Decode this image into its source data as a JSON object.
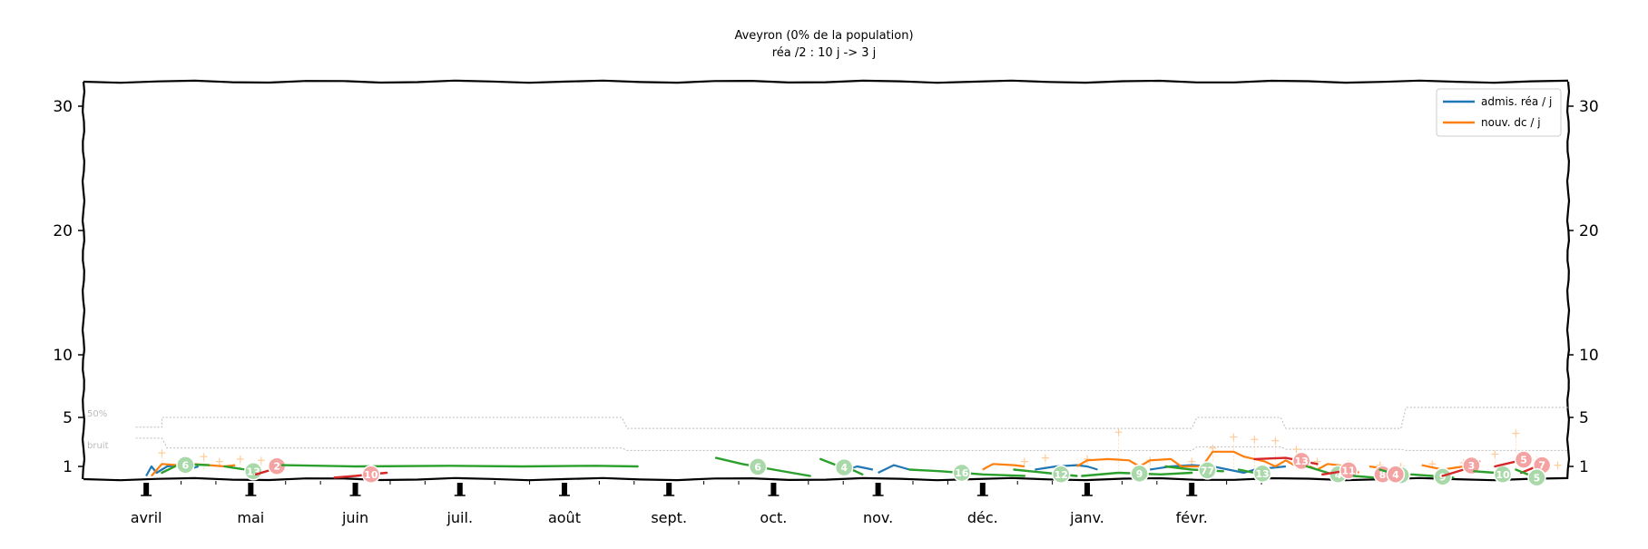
{
  "chart_data": {
    "type": "line",
    "title": "Aveyron (0% de la population)",
    "subtitle": "réa /2 : 10 j -> 3 j",
    "xlabel": "",
    "ylabel": "",
    "months": [
      "avril",
      "mai",
      "juin",
      "juil.",
      "août",
      "sept.",
      "oct.",
      "nov.",
      "déc.",
      "janv.",
      "févr."
    ],
    "yticks": [
      1,
      5,
      10,
      20,
      30
    ],
    "ylim": [
      0.6,
      32
    ],
    "grid": false,
    "legend": {
      "placement": "top-right",
      "entries": [
        "admis. réa / j",
        "nouv. dc / j"
      ]
    },
    "band_labels": [
      "50%",
      "bruit"
    ],
    "colors": {
      "rea": "#1f77b4",
      "dc": "#ff7f0e",
      "falling": "#2ca02c",
      "rising": "#d62728",
      "band": "#bbbbbb",
      "dc_points": "#ffcc99"
    },
    "series": [
      {
        "name": "admis. réa / j",
        "color": "#1f77b4",
        "segments": [
          [
            [
              0.0,
              0.7
            ],
            [
              0.05,
              1.0
            ],
            [
              0.1,
              0.8
            ],
            [
              0.2,
              1.0
            ],
            [
              0.3,
              1.1
            ],
            [
              0.4,
              0.9
            ],
            [
              0.5,
              1.0
            ]
          ],
          [
            [
              6.7,
              0.9
            ],
            [
              6.8,
              1.0
            ],
            [
              6.95,
              0.9
            ]
          ],
          [
            [
              7.0,
              0.8
            ],
            [
              7.15,
              1.1
            ],
            [
              7.3,
              0.9
            ]
          ],
          [
            [
              8.5,
              0.9
            ],
            [
              8.7,
              1.0
            ],
            [
              8.9,
              1.1
            ],
            [
              9.0,
              1.0
            ],
            [
              9.1,
              0.9
            ]
          ],
          [
            [
              9.6,
              0.9
            ],
            [
              9.8,
              1.0
            ],
            [
              10.0,
              1.1
            ],
            [
              10.2,
              1.0
            ],
            [
              10.5,
              0.8
            ],
            [
              10.6,
              0.9
            ],
            [
              10.9,
              1.0
            ]
          ]
        ]
      },
      {
        "name": "nouv. dc / j",
        "color": "#ff7f0e",
        "segments": [
          [
            [
              0.05,
              0.7
            ],
            [
              0.15,
              1.2
            ],
            [
              0.3,
              1.1
            ],
            [
              0.35,
              0.9
            ],
            [
              0.45,
              1.2
            ],
            [
              0.6,
              1.1
            ],
            [
              0.75,
              1.0
            ],
            [
              0.85,
              1.1
            ]
          ],
          [
            [
              8.0,
              0.9
            ],
            [
              8.1,
              1.2
            ],
            [
              8.3,
              1.1
            ],
            [
              8.4,
              1.0
            ]
          ],
          [
            [
              8.9,
              1.0
            ],
            [
              9.0,
              1.5
            ],
            [
              9.2,
              1.6
            ],
            [
              9.4,
              1.5
            ],
            [
              9.5,
              1.0
            ],
            [
              9.6,
              1.5
            ],
            [
              9.8,
              1.6
            ],
            [
              9.9,
              1.0
            ],
            [
              10.1,
              1.0
            ],
            [
              10.2,
              2.2
            ],
            [
              10.4,
              2.2
            ],
            [
              10.5,
              1.8
            ],
            [
              10.7,
              1.4
            ],
            [
              10.8,
              1.0
            ],
            [
              10.9,
              1.5
            ],
            [
              11.0,
              1.0
            ]
          ],
          [
            [
              11.1,
              1.1
            ],
            [
              11.2,
              0.9
            ],
            [
              11.3,
              1.2
            ],
            [
              11.5,
              1.0
            ],
            [
              11.6,
              0.8
            ]
          ],
          [
            [
              11.7,
              1.0
            ],
            [
              11.9,
              0.9
            ],
            [
              12.0,
              1.0
            ]
          ],
          [
            [
              12.2,
              1.1
            ],
            [
              12.4,
              0.9
            ],
            [
              12.6,
              1.0
            ]
          ]
        ]
      }
    ],
    "trends": [
      {
        "dir": "falling",
        "label": "6",
        "points": [
          [
            0.15,
            0.8
          ],
          [
            0.3,
            1.1
          ],
          [
            0.45,
            1.15
          ],
          [
            0.6,
            1.1
          ]
        ]
      },
      {
        "dir": "falling",
        "label": "13",
        "points": [
          [
            0.75,
            1.0
          ],
          [
            0.95,
            0.9
          ],
          [
            1.1,
            0.8
          ]
        ]
      },
      {
        "dir": "rising",
        "label": "2",
        "points": [
          [
            1.05,
            0.75
          ],
          [
            1.2,
            0.9
          ],
          [
            1.3,
            1.3
          ]
        ]
      },
      {
        "dir": "falling",
        "label": "",
        "points": [
          [
            1.3,
            1.1
          ],
          [
            2.0,
            1.0
          ],
          [
            2.9,
            1.05
          ],
          [
            3.6,
            1.0
          ],
          [
            4.3,
            1.05
          ],
          [
            4.7,
            1.0
          ]
        ]
      },
      {
        "dir": "rising",
        "label": "10",
        "points": [
          [
            1.8,
            0.65
          ],
          [
            2.0,
            0.7
          ],
          [
            2.3,
            0.8
          ]
        ]
      },
      {
        "dir": "falling",
        "label": "6",
        "points": [
          [
            5.45,
            1.7
          ],
          [
            5.7,
            1.2
          ],
          [
            6.0,
            0.9
          ],
          [
            6.35,
            0.7
          ]
        ]
      },
      {
        "dir": "falling",
        "label": "4",
        "points": [
          [
            6.45,
            1.6
          ],
          [
            6.6,
            1.1
          ],
          [
            6.75,
            0.9
          ],
          [
            6.85,
            0.75
          ]
        ]
      },
      {
        "dir": "falling",
        "label": "16",
        "points": [
          [
            7.3,
            0.9
          ],
          [
            7.6,
            0.85
          ],
          [
            8.0,
            0.75
          ],
          [
            8.4,
            0.7
          ]
        ]
      },
      {
        "dir": "falling",
        "label": "12",
        "points": [
          [
            8.3,
            0.9
          ],
          [
            8.6,
            0.8
          ],
          [
            8.9,
            0.7
          ]
        ]
      },
      {
        "dir": "falling",
        "label": "9",
        "points": [
          [
            8.95,
            0.7
          ],
          [
            9.3,
            0.8
          ],
          [
            9.7,
            0.75
          ],
          [
            10.0,
            0.8
          ]
        ]
      },
      {
        "dir": "falling",
        "label": "77",
        "points": [
          [
            9.75,
            1.0
          ],
          [
            10.0,
            0.9
          ],
          [
            10.3,
            0.85
          ]
        ]
      },
      {
        "dir": "falling",
        "label": "13",
        "points": [
          [
            10.45,
            0.9
          ],
          [
            10.6,
            0.8
          ],
          [
            10.75,
            0.75
          ]
        ]
      },
      {
        "dir": "rising",
        "label": "13",
        "points": [
          [
            10.6,
            1.6
          ],
          [
            10.9,
            1.7
          ],
          [
            11.2,
            1.2
          ]
        ]
      },
      {
        "dir": "falling",
        "label": "4",
        "points": [
          [
            11.1,
            1.0
          ],
          [
            11.3,
            0.8
          ],
          [
            11.5,
            0.7
          ]
        ]
      },
      {
        "dir": "rising",
        "label": "11",
        "points": [
          [
            11.25,
            0.75
          ],
          [
            11.45,
            0.85
          ],
          [
            11.55,
            0.9
          ]
        ]
      },
      {
        "dir": "falling",
        "label": "",
        "points": [
          [
            11.55,
            0.7
          ],
          [
            11.75,
            0.65
          ],
          [
            11.95,
            0.6
          ]
        ]
      },
      {
        "dir": "rising",
        "label": "8",
        "points": [
          [
            11.75,
            0.7
          ],
          [
            11.9,
            0.8
          ]
        ]
      },
      {
        "dir": "falling",
        "label": "3",
        "points": [
          [
            11.8,
            0.9
          ],
          [
            11.95,
            0.75
          ],
          [
            12.05,
            0.7
          ]
        ]
      },
      {
        "dir": "rising",
        "label": "4",
        "points": [
          [
            11.9,
            0.7
          ],
          [
            12.0,
            0.8
          ]
        ]
      },
      {
        "dir": "falling",
        "label": "9",
        "points": [
          [
            12.1,
            0.75
          ],
          [
            12.3,
            0.7
          ],
          [
            12.5,
            0.65
          ]
        ]
      },
      {
        "dir": "rising",
        "label": "3",
        "points": [
          [
            12.4,
            0.7
          ],
          [
            12.6,
            0.9
          ],
          [
            12.75,
            1.4
          ]
        ]
      },
      {
        "dir": "falling",
        "label": "10",
        "points": [
          [
            12.7,
            0.85
          ],
          [
            12.9,
            0.8
          ],
          [
            13.05,
            0.7
          ]
        ]
      },
      {
        "dir": "rising",
        "label": "5",
        "points": [
          [
            12.9,
            1.0
          ],
          [
            13.1,
            1.4
          ],
          [
            13.25,
            1.7
          ]
        ]
      },
      {
        "dir": "rising",
        "label": "7",
        "points": [
          [
            13.15,
            0.8
          ],
          [
            13.3,
            1.0
          ],
          [
            13.4,
            1.2
          ]
        ]
      },
      {
        "dir": "falling",
        "label": "5",
        "points": [
          [
            13.1,
            0.9
          ],
          [
            13.25,
            0.7
          ],
          [
            13.35,
            0.6
          ]
        ]
      }
    ],
    "bands": {
      "upper": [
        [
          -0.1,
          4.2
        ],
        [
          0.15,
          4.2
        ],
        [
          0.15,
          5.0
        ],
        [
          4.55,
          5.0
        ],
        [
          4.6,
          4.1
        ],
        [
          10.0,
          4.1
        ],
        [
          10.05,
          5.0
        ],
        [
          10.85,
          5.0
        ],
        [
          10.9,
          4.1
        ],
        [
          12.0,
          4.1
        ],
        [
          12.05,
          5.8
        ],
        [
          13.6,
          5.8
        ]
      ],
      "lower": [
        [
          -0.1,
          3.3
        ],
        [
          0.15,
          3.3
        ],
        [
          0.2,
          2.5
        ],
        [
          4.55,
          2.5
        ],
        [
          4.6,
          2.3
        ],
        [
          10.0,
          2.3
        ],
        [
          10.05,
          2.6
        ],
        [
          10.85,
          2.6
        ],
        [
          10.9,
          2.4
        ],
        [
          12.0,
          2.4
        ],
        [
          12.05,
          2.3
        ],
        [
          13.6,
          2.3
        ]
      ]
    },
    "dc_points": [
      [
        0.15,
        2.1
      ],
      [
        0.55,
        1.8
      ],
      [
        0.7,
        1.4
      ],
      [
        0.9,
        1.6
      ],
      [
        1.1,
        1.5
      ],
      [
        8.4,
        1.4
      ],
      [
        8.6,
        1.7
      ],
      [
        9.0,
        1.6
      ],
      [
        9.3,
        3.8
      ],
      [
        9.6,
        1.5
      ],
      [
        10.0,
        1.4
      ],
      [
        10.2,
        2.5
      ],
      [
        10.4,
        3.4
      ],
      [
        10.6,
        3.2
      ],
      [
        10.8,
        3.1
      ],
      [
        11.0,
        2.4
      ],
      [
        11.2,
        1.4
      ],
      [
        11.5,
        1.2
      ],
      [
        11.8,
        1.1
      ],
      [
        12.0,
        1.0
      ],
      [
        12.3,
        1.2
      ],
      [
        12.6,
        1.3
      ],
      [
        12.9,
        2.0
      ],
      [
        13.1,
        3.7
      ],
      [
        13.3,
        1.5
      ],
      [
        13.5,
        1.1
      ]
    ]
  }
}
